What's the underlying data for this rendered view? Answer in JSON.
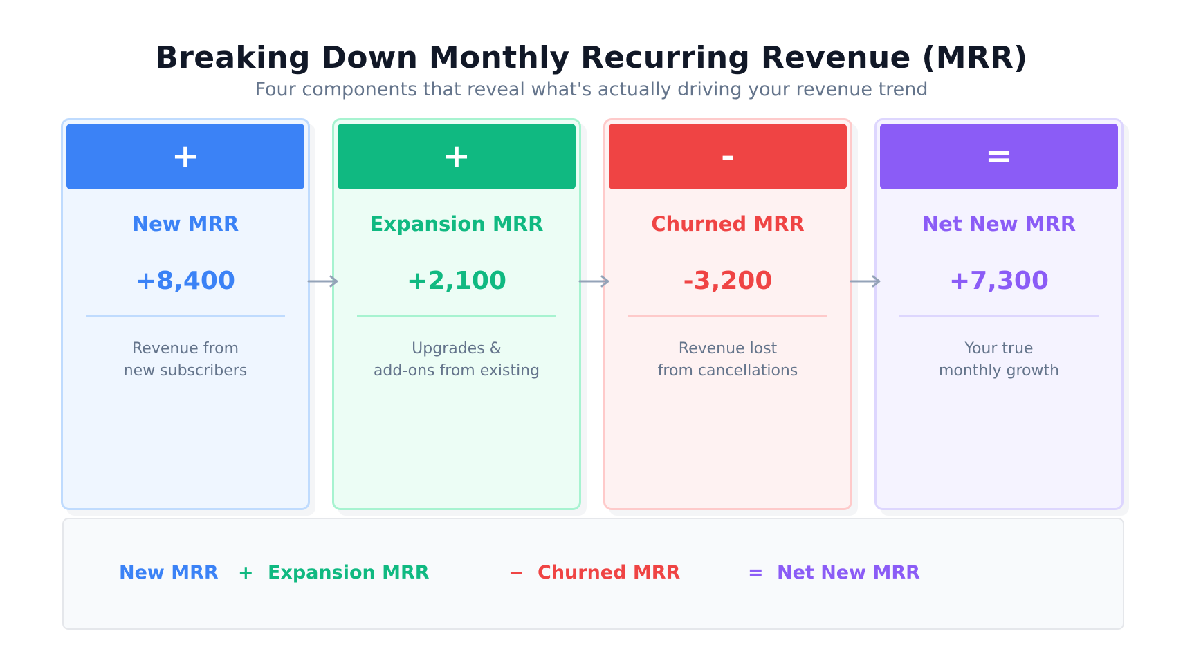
{
  "title": "Breaking Down Monthly Recurring Revenue (MRR)",
  "subtitle": "Four components that reveal what's actually driving your revenue trend",
  "cards": [
    {
      "symbol": "+",
      "name": "New MRR",
      "value": "+8,400",
      "desc_line1": "Revenue from",
      "desc_line2": "new subscribers",
      "color": "#3b82f6",
      "bg": "#eff6ff",
      "border": "#bfdbfe"
    },
    {
      "symbol": "+",
      "name": "Expansion MRR",
      "value": "+2,100",
      "desc_line1": "Upgrades &",
      "desc_line2": "add-ons from existing",
      "color": "#10b981",
      "bg": "#ecfdf5",
      "border": "#a7f3d0"
    },
    {
      "symbol": "-",
      "name": "Churned MRR",
      "value": "-3,200",
      "desc_line1": "Revenue lost",
      "desc_line2": "from cancellations",
      "color": "#ef4444",
      "bg": "#fef2f2",
      "border": "#fecaca"
    },
    {
      "symbol": "=",
      "name": "Net New MRR",
      "value": "+7,300",
      "desc_line1": "Your true",
      "desc_line2": "monthly growth",
      "color": "#8b5cf6",
      "bg": "#f5f3ff",
      "border": "#ddd6fe"
    }
  ],
  "formula": {
    "term1": "New MRR",
    "op1": "+",
    "term2": "Expansion MRR",
    "op2": "−",
    "term3": "Churned MRR",
    "op3": "=",
    "term4": "Net New MRR"
  },
  "arrow_color": "#94a3b8"
}
